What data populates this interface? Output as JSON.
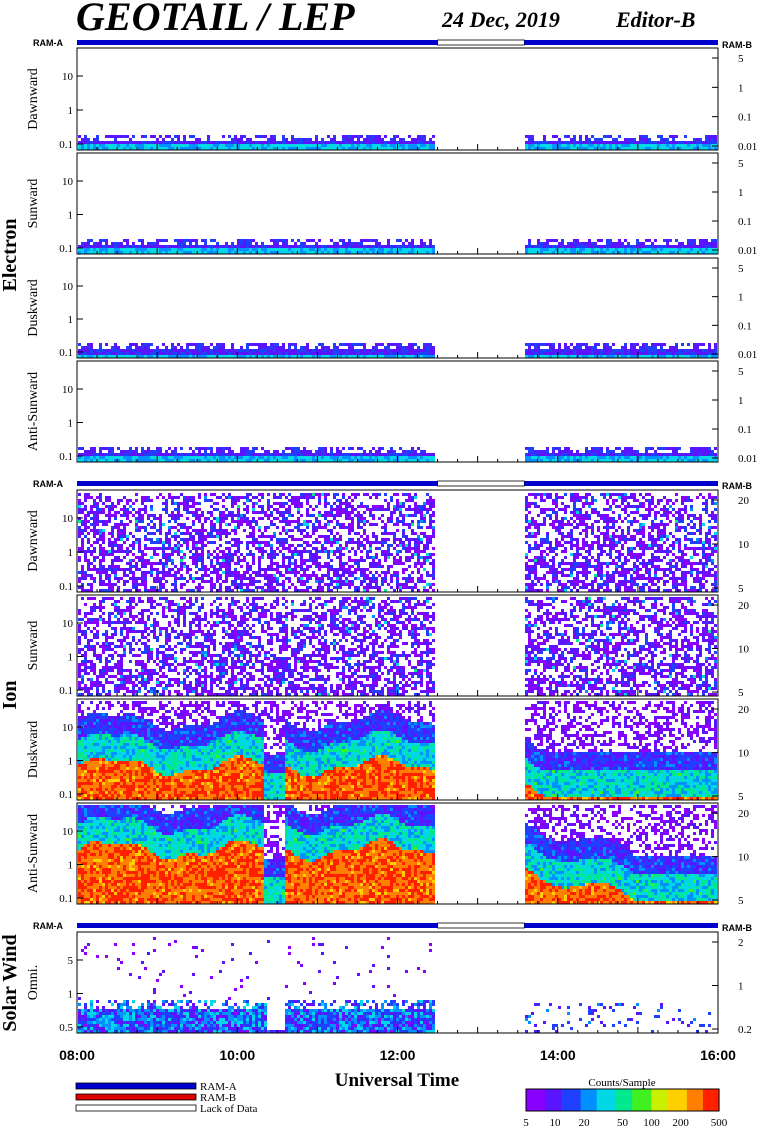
{
  "header": {
    "title": "GEOTAIL / LEP",
    "date": "24 Dec, 2019",
    "editor": "Editor-B"
  },
  "ram_labels": {
    "left": "RAM-A",
    "right": "RAM-B"
  },
  "groups": [
    {
      "name": "Electron"
    },
    {
      "name": "Ion"
    },
    {
      "name": "Solar Wind"
    }
  ],
  "legend": {
    "items": [
      {
        "label": "RAM-A",
        "color": "#0000cc"
      },
      {
        "label": "RAM-B",
        "color": "#dd0000"
      },
      {
        "label": "Lack of Data",
        "color": "#ffffff"
      }
    ],
    "colorbar_title": "Counts/Sample",
    "colorbar_ticks": [
      "5",
      "10",
      "20",
      "50",
      "100",
      "200",
      "500"
    ]
  },
  "chart_data": {
    "type": "heatmap",
    "xlabel": "Universal Time",
    "x_ticks": [
      "08:00",
      "10:00",
      "12:00",
      "14:00",
      "16:00"
    ],
    "x_range": [
      "08:00",
      "16:00"
    ],
    "data_gap": [
      "12:30",
      "13:35"
    ],
    "panels": [
      {
        "group": "Electron",
        "name": "Dawnward",
        "y_ticks": [
          "10",
          "1",
          "0.1"
        ],
        "right_ticks": [
          "5",
          "1",
          "0.1",
          "0.01"
        ],
        "profile": "electron",
        "seed": 11
      },
      {
        "group": "Electron",
        "name": "Sunward",
        "y_ticks": [
          "10",
          "1",
          "0.1"
        ],
        "right_ticks": [
          "5",
          "1",
          "0.1",
          "0.01"
        ],
        "profile": "electron",
        "seed": 23
      },
      {
        "group": "Electron",
        "name": "Duskward",
        "y_ticks": [
          "10",
          "1",
          "0.1"
        ],
        "right_ticks": [
          "5",
          "1",
          "0.1",
          "0.01"
        ],
        "profile": "electron",
        "seed": 37
      },
      {
        "group": "Electron",
        "name": "Anti-Sunward",
        "y_ticks": [
          "10",
          "1",
          "0.1"
        ],
        "right_ticks": [
          "5",
          "1",
          "0.1",
          "0.01"
        ],
        "profile": "electron",
        "seed": 41
      },
      {
        "group": "Ion",
        "name": "Dawnward",
        "y_ticks": [
          "10",
          "1",
          "0.1"
        ],
        "right_ticks": [
          "20",
          "10",
          "5"
        ],
        "profile": "ion_sparse",
        "seed": 53
      },
      {
        "group": "Ion",
        "name": "Sunward",
        "y_ticks": [
          "10",
          "1",
          "0.1"
        ],
        "right_ticks": [
          "20",
          "10",
          "5"
        ],
        "profile": "ion_sparse",
        "seed": 67
      },
      {
        "group": "Ion",
        "name": "Duskward",
        "y_ticks": [
          "10",
          "1",
          "0.1"
        ],
        "right_ticks": [
          "20",
          "10",
          "5"
        ],
        "profile": "ion_dense",
        "seed": 71
      },
      {
        "group": "Ion",
        "name": "Anti-Sunward",
        "y_ticks": [
          "10",
          "1",
          "0.1"
        ],
        "right_ticks": [
          "20",
          "10",
          "5"
        ],
        "profile": "ion_dense2",
        "seed": 89
      },
      {
        "group": "Solar Wind",
        "name": "Omni.",
        "y_ticks": [
          "5",
          "1",
          "0.5"
        ],
        "right_ticks": [
          "2",
          "1",
          "0.2"
        ],
        "profile": "solar",
        "seed": 97
      }
    ]
  }
}
